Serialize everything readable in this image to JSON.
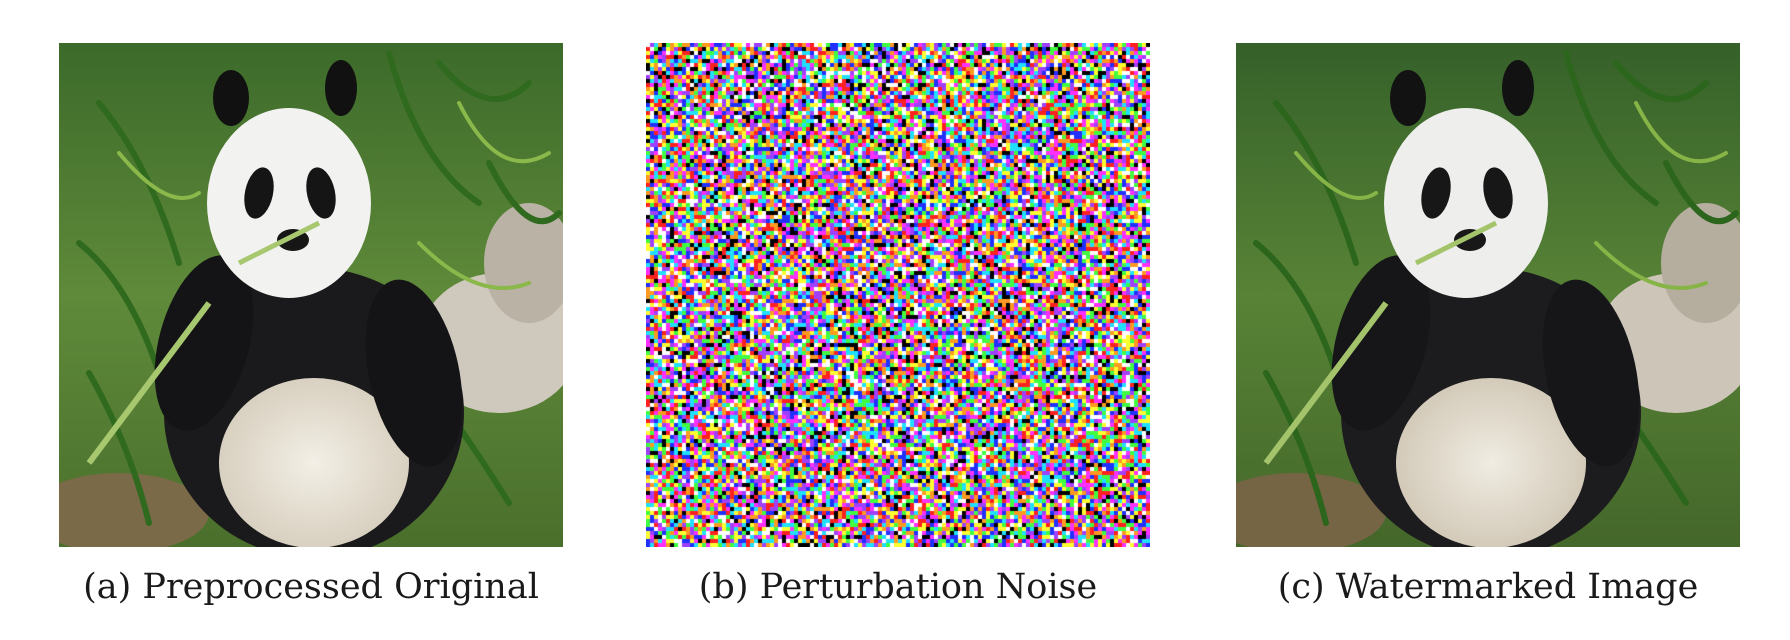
{
  "figure": {
    "panels": [
      {
        "id": "a",
        "caption": "(a) Preprocessed Original",
        "content": "panda photograph"
      },
      {
        "id": "b",
        "caption": "(b) Perturbation Noise",
        "content": "random color noise"
      },
      {
        "id": "c",
        "caption": "(c) Watermarked Image",
        "content": "panda photograph"
      }
    ],
    "noise_colors": [
      "#ff2020",
      "#20e0ff",
      "#40ff40",
      "#2030ff",
      "#ffff30",
      "#ff30ff",
      "#ffffff",
      "#000000",
      "#ff9a20",
      "#a040ff"
    ]
  }
}
